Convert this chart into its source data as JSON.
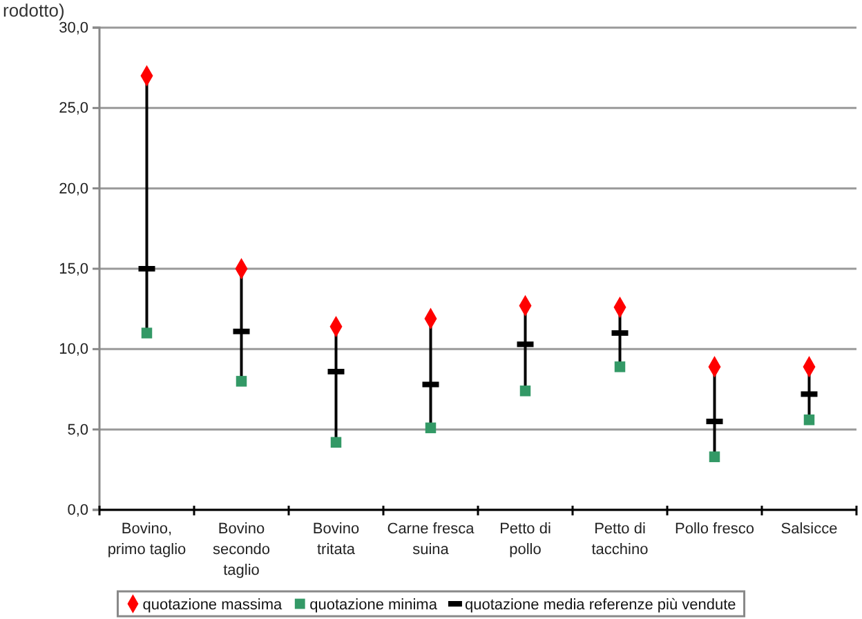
{
  "chart_data": {
    "type": "scatter",
    "title": "rodotto)",
    "categories": [
      "Bovino, primo taglio",
      "Bovino secondo taglio",
      "Bovino tritata",
      "Carne fresca suina",
      "Petto di pollo",
      "Petto di tacchino",
      "Pollo fresco",
      "Salsicce"
    ],
    "series": [
      {
        "name": "quotazione massima",
        "color": "#ff0000",
        "marker": "diamond",
        "values": [
          27.0,
          15.0,
          11.4,
          11.9,
          12.7,
          12.6,
          8.9,
          8.9
        ]
      },
      {
        "name": "quotazione minima",
        "color": "#339966",
        "marker": "square",
        "values": [
          11.0,
          8.0,
          4.2,
          5.1,
          7.4,
          8.9,
          3.3,
          5.6
        ]
      },
      {
        "name": "quotazione media referenze più vendute",
        "color": "#000000",
        "values": [
          15.0,
          11.1,
          8.6,
          7.8,
          10.3,
          11.0,
          5.5,
          7.2
        ]
      }
    ],
    "ylim": [
      0,
      30
    ],
    "yticks": [
      {
        "value": 0,
        "label": "0,0"
      },
      {
        "value": 5,
        "label": "5,0"
      },
      {
        "value": 10,
        "label": "10,0"
      },
      {
        "value": 15,
        "label": "15,0"
      },
      {
        "value": 20,
        "label": "20,0"
      },
      {
        "value": 25,
        "label": "25,0"
      },
      {
        "value": 30,
        "label": "30,0"
      }
    ],
    "grid": "y",
    "legend": "bottom"
  }
}
